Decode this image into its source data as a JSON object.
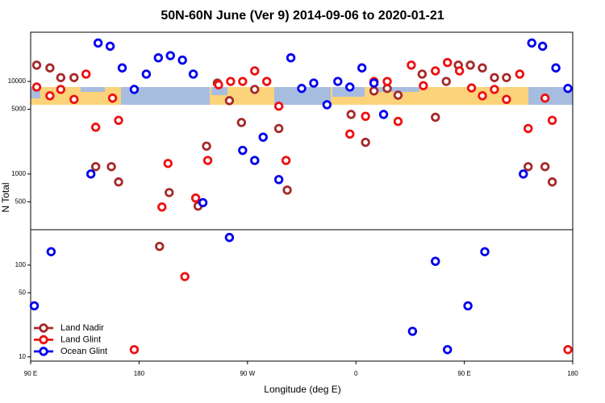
{
  "chart_data": [
    {
      "type": "scatter",
      "title": "50N-60N June (Ver 9)   2014-09-06 to 2020-01-21",
      "y_label": "N Total",
      "log_y": true,
      "xlim": [
        90,
        540
      ],
      "ylim": [
        250,
        34000
      ],
      "yticks": [
        500,
        1000,
        5000,
        10000
      ],
      "series": [
        {
          "color": "#a52a2a",
          "x": [
            95,
            106,
            115,
            126,
            144,
            157,
            163,
            205,
            229,
            236,
            245,
            255,
            265,
            276,
            286,
            296,
            303,
            356,
            368,
            375,
            386,
            395,
            415,
            426,
            435,
            445,
            455,
            465,
            475,
            485,
            503,
            517,
            523
          ],
          "values": [
            15000,
            14000,
            11000,
            11000,
            1200,
            1200,
            820,
            630,
            450,
            2000,
            9600,
            6200,
            3600,
            8200,
            10000,
            3100,
            670,
            4400,
            2200,
            7900,
            8400,
            7100,
            12000,
            4100,
            10000,
            15000,
            15000,
            14000,
            11000,
            11000,
            1200,
            1200,
            820
          ]
        },
        {
          "color": "#ee1111",
          "x": [
            95,
            106,
            115,
            126,
            136,
            144,
            158,
            163,
            199,
            204,
            227,
            237,
            246,
            256,
            266,
            276,
            286,
            296,
            302,
            355,
            368,
            375,
            386,
            395,
            406,
            416,
            426,
            436,
            446,
            456,
            465,
            475,
            485,
            496,
            503,
            517,
            523
          ],
          "values": [
            8700,
            7000,
            8200,
            6400,
            12000,
            3200,
            6600,
            3800,
            440,
            1300,
            550,
            1400,
            9200,
            10000,
            10000,
            13000,
            10000,
            5400,
            1400,
            2700,
            4200,
            10000,
            10000,
            3700,
            15000,
            9000,
            13000,
            16000,
            13000,
            8500,
            7000,
            8200,
            6400,
            12000,
            3100,
            6600,
            3800
          ]
        },
        {
          "color": "#0000ee",
          "x": [
            140,
            146,
            156,
            166,
            176,
            186,
            196,
            206,
            216,
            225,
            233,
            266,
            276,
            283,
            296,
            306,
            315,
            325,
            336,
            345,
            355,
            365,
            375,
            383,
            499,
            506,
            515,
            526,
            536
          ],
          "values": [
            1000,
            26000,
            24000,
            14000,
            8200,
            12000,
            18000,
            19000,
            17000,
            12000,
            490,
            1800,
            1400,
            2500,
            870,
            18000,
            8400,
            9600,
            5600,
            10000,
            8700,
            14000,
            9600,
            4400,
            1000,
            26000,
            24000,
            14000,
            8400
          ]
        }
      ]
    },
    {
      "type": "scatter",
      "x_label": "Longitude (deg E)",
      "log_y": true,
      "legend": "lower left",
      "xlim": [
        90,
        540
      ],
      "ylim": [
        9,
        243
      ],
      "yticks": [
        10,
        50,
        100
      ],
      "xticks": [
        {
          "value": 90,
          "label": "90 E"
        },
        180,
        {
          "value": 270,
          "label": "90 W"
        },
        {
          "value": 360,
          "label": "0"
        },
        {
          "value": 450,
          "label": "90 E"
        },
        {
          "value": 540,
          "label": "180"
        }
      ],
      "series": [
        {
          "name": "Land Nadir",
          "color": "#a52a2a",
          "x": [
            197
          ],
          "values": [
            160
          ]
        },
        {
          "name": "Land Glint",
          "color": "#ee1111",
          "x": [
            176,
            218,
            536
          ],
          "values": [
            12,
            75,
            12
          ]
        },
        {
          "name": "Ocean Glint",
          "color": "#0000ee",
          "x": [
            93,
            107,
            255,
            407,
            426,
            436,
            453,
            467
          ],
          "values": [
            36,
            140,
            200,
            19,
            110,
            12,
            36,
            140
          ]
        }
      ]
    }
  ]
}
